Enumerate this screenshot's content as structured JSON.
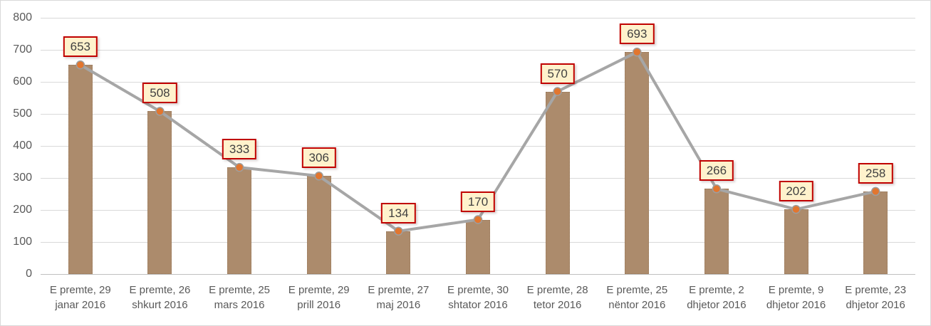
{
  "frame": {
    "background": "#ffffff",
    "border_color": "#d9d9d9"
  },
  "chart_data": {
    "type": "bar",
    "subtype": "bar-with-line-overlay-and-markers",
    "title": "",
    "xlabel": "",
    "ylabel": "",
    "categories": [
      "E premte, 29 janar 2016",
      "E premte, 26 shkurt 2016",
      "E premte, 25 mars 2016",
      "E premte, 29 prill 2016",
      "E premte, 27 maj 2016",
      "E premte, 30 shtator 2016",
      "E premte, 28 tetor 2016",
      "E premte, 25 nëntor 2016",
      "E premte, 2 dhjetor 2016",
      "E premte, 9 dhjetor 2016",
      "E premte, 23 dhjetor 2016"
    ],
    "values": [
      653,
      508,
      333,
      306,
      134,
      170,
      570,
      693,
      266,
      202,
      258
    ],
    "series": [
      {
        "name": "bars",
        "type": "bar",
        "values": [
          653,
          508,
          333,
          306,
          134,
          170,
          570,
          693,
          266,
          202,
          258
        ]
      },
      {
        "name": "line",
        "type": "line",
        "values": [
          653,
          508,
          333,
          306,
          134,
          170,
          570,
          693,
          266,
          202,
          258
        ]
      }
    ],
    "data_labels": [
      "653",
      "508",
      "333",
      "306",
      "134",
      "170",
      "570",
      "693",
      "266",
      "202",
      "258"
    ],
    "ylim": [
      0,
      800
    ],
    "yticks": [
      0,
      100,
      200,
      300,
      400,
      500,
      600,
      700,
      800
    ],
    "grid": true,
    "legend": "none",
    "colors": {
      "bar": "#ac8b6c",
      "line": "#a6a6a6",
      "marker": "#e2762f",
      "marker_stroke": "#9e9e9e",
      "label_bg": "#fff2cc",
      "label_border": "#c00000",
      "label_text": "#404040",
      "gridline": "#d9d9d9",
      "axis_line": "#bfbfbf",
      "tick_text": "#595959"
    }
  }
}
